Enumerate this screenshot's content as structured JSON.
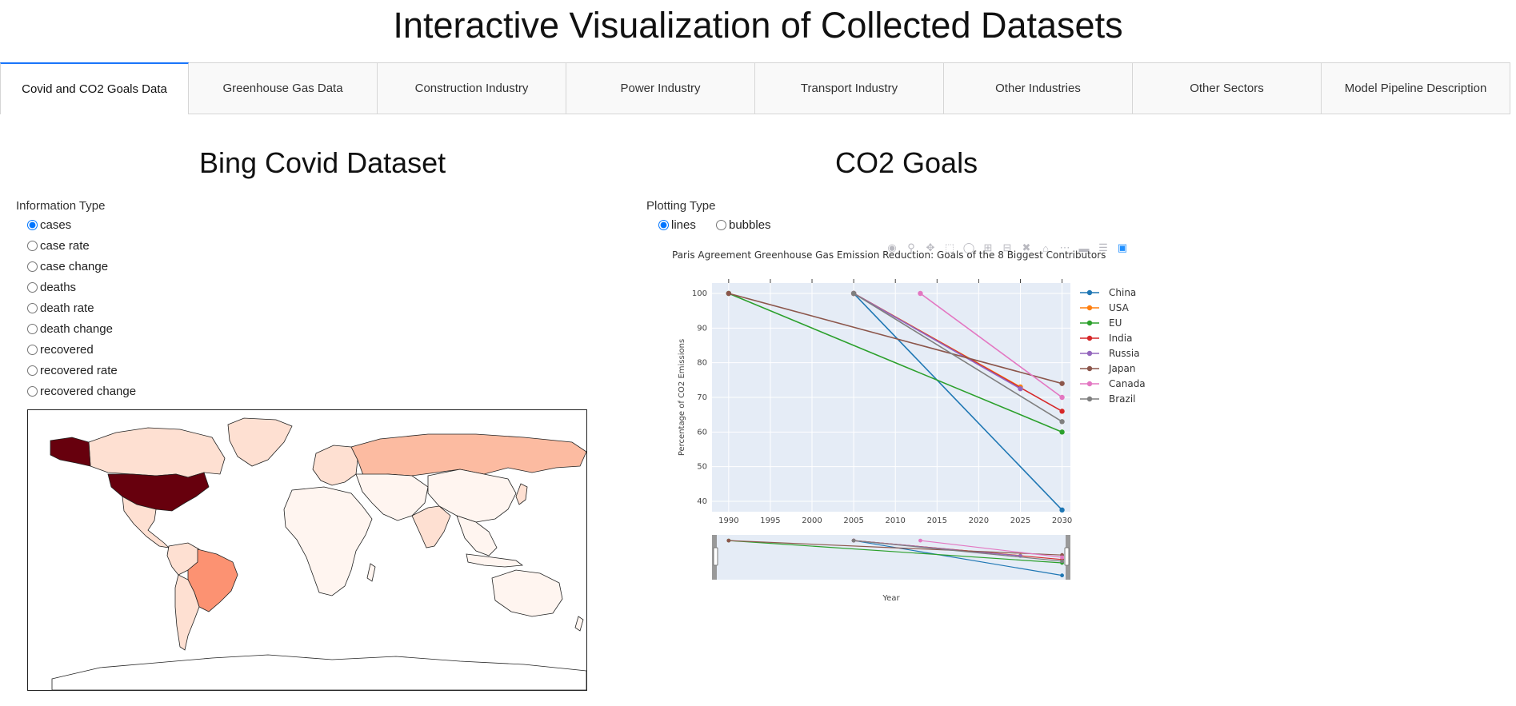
{
  "page": {
    "title": "Interactive Visualization of Collected Datasets"
  },
  "tabs": [
    {
      "label": "Covid and CO2 Goals Data",
      "active": true
    },
    {
      "label": "Greenhouse Gas Data"
    },
    {
      "label": "Construction Industry"
    },
    {
      "label": "Power Industry"
    },
    {
      "label": "Transport Industry"
    },
    {
      "label": "Other Industries"
    },
    {
      "label": "Other Sectors"
    },
    {
      "label": "Model Pipeline Description"
    }
  ],
  "covid": {
    "title": "Bing Covid Dataset",
    "info_label": "Information Type",
    "options": [
      "cases",
      "case rate",
      "case change",
      "deaths",
      "death rate",
      "death change",
      "recovered",
      "recovered rate",
      "recovered change"
    ],
    "selected": "cases"
  },
  "co2": {
    "title": "CO2 Goals",
    "plot_label": "Plotting Type",
    "options": [
      "lines",
      "bubbles"
    ],
    "selected": "lines"
  },
  "chart_data": {
    "type": "line",
    "title": "Paris Agreement Greenhouse Gas Emission Reduction: Goals of the 8 Biggest Contributors",
    "xlabel": "Year",
    "ylabel": "Percentage of CO2 Emissions",
    "xlim": [
      1988,
      2031
    ],
    "ylim": [
      37,
      103
    ],
    "xticks": [
      1990,
      1995,
      2000,
      2005,
      2010,
      2015,
      2020,
      2025,
      2030
    ],
    "yticks": [
      40,
      50,
      60,
      70,
      80,
      90,
      100
    ],
    "legend": "right",
    "series": [
      {
        "name": "China",
        "color": "#1f77b4",
        "x": [
          2005,
          2030
        ],
        "y": [
          100,
          37.5
        ]
      },
      {
        "name": "USA",
        "color": "#ff7f0e",
        "x": [
          2005,
          2025
        ],
        "y": [
          100,
          73
        ]
      },
      {
        "name": "EU",
        "color": "#2ca02c",
        "x": [
          1990,
          2030
        ],
        "y": [
          100,
          60
        ]
      },
      {
        "name": "India",
        "color": "#d62728",
        "x": [
          2005,
          2030
        ],
        "y": [
          100,
          66
        ]
      },
      {
        "name": "Russia",
        "color": "#9467bd",
        "x": [
          2005,
          2025
        ],
        "y": [
          100,
          72.5
        ]
      },
      {
        "name": "Japan",
        "color": "#8c564b",
        "x": [
          1990,
          2030
        ],
        "y": [
          100,
          74
        ]
      },
      {
        "name": "Canada",
        "color": "#e377c2",
        "x": [
          2013,
          2030
        ],
        "y": [
          100,
          70
        ]
      },
      {
        "name": "Brazil",
        "color": "#7f7f7f",
        "x": [
          2005,
          2030
        ],
        "y": [
          100,
          63
        ]
      }
    ]
  },
  "map": {
    "colors": {
      "ocean": "#ffffff",
      "base": "#fff5f0",
      "light": "#fee0d2",
      "mid": "#fcbba1",
      "orange": "#fc9272",
      "strong": "#fb6a4a",
      "dark": "#67000d"
    }
  }
}
